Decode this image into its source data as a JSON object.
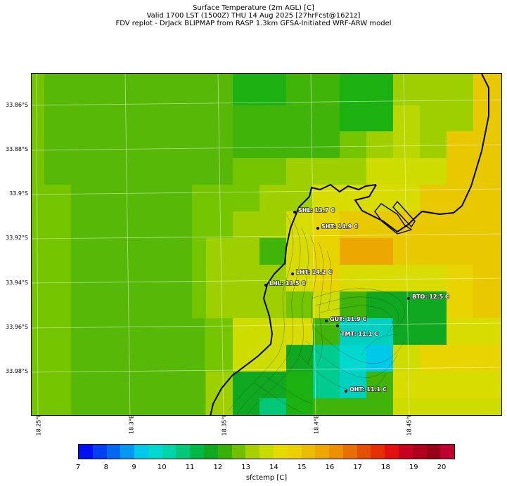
{
  "title_lines": [
    "Surface Temperature (2m AGL) [C]",
    "Valid 1700 LST (1500Z) THU 14 Aug 2025 [27hrFcst@1621z]",
    "FDV replot - DrJack BLIPMAP from RASP 1.3km GFSA-Initiated WRF-ARW model"
  ],
  "lat_labels": [
    "33.86°S",
    "33.88°S",
    "33.9°S",
    "33.92°S",
    "33.94°S",
    "33.96°S",
    "33.98°S"
  ],
  "lon_labels": [
    "18.25°E",
    "18.3°E",
    "18.35°E",
    "18.4°E",
    "18.45°E"
  ],
  "stations": [
    {
      "code": "SHL",
      "value": "13.7 C",
      "label": "SHL: 13.7 C"
    },
    {
      "code": "SHT",
      "value": "14.9 C",
      "label": "SHT: 14.9 C"
    },
    {
      "code": "LHT",
      "value": "14.2 C",
      "label": "LHT: 14.2 C"
    },
    {
      "code": "LHL",
      "value": "13.5 C",
      "label": "LHL: 13.5 C"
    },
    {
      "code": "BTO",
      "value": "12.5 C",
      "label": "BTO: 12.5 C"
    },
    {
      "code": "GUT",
      "value": "11.9 C",
      "label": "GUT: 11.9 C"
    },
    {
      "code": "TMT",
      "value": "11.1 C",
      "label": "TMT: 11.1 C"
    },
    {
      "code": "OHT",
      "value": "11.1 C",
      "label": "OHT: 11.1 C"
    }
  ],
  "colorbar": {
    "label": "sfctemp [C]",
    "ticks": [
      "7",
      "8",
      "9",
      "10",
      "11",
      "12",
      "13",
      "14",
      "15",
      "16",
      "17",
      "18",
      "19",
      "20"
    ],
    "colors": [
      "#0000ee",
      "#0a2af0",
      "#1460f2",
      "#1890f4",
      "#10c0ee",
      "#00dcdc",
      "#00d8b0",
      "#00cc80",
      "#00bb55",
      "#10aa20",
      "#40b010",
      "#70c000",
      "#a8d400",
      "#cce000",
      "#e8e000",
      "#f0d000",
      "#f0c000",
      "#f0a800",
      "#f09000",
      "#ec7000",
      "#e85000",
      "#e43000",
      "#e01010",
      "#c80020",
      "#b00020",
      "#980018",
      "#800010"
    ],
    "segment_colors": [
      "#0010f0",
      "#0040f0",
      "#0068f0",
      "#0098f0",
      "#00c8e8",
      "#00d8d0",
      "#00d4a8",
      "#00c878",
      "#00b848",
      "#10a820",
      "#38b008",
      "#70c000",
      "#a8d000",
      "#c8dc00",
      "#e4dc00",
      "#ecd000",
      "#ecbc00",
      "#eca800",
      "#ec9000",
      "#e87000",
      "#e45000",
      "#e43000",
      "#e01010",
      "#c80020",
      "#b00020",
      "#980018",
      "#c00030"
    ]
  }
}
